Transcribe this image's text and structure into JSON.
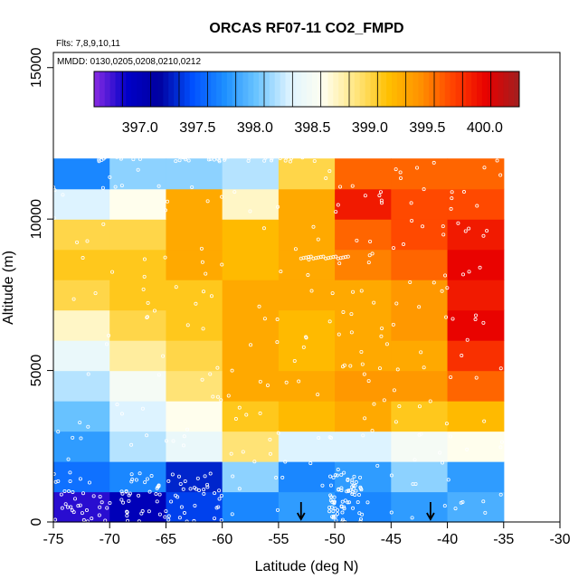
{
  "chart_data": {
    "type": "heatmap",
    "title": "ORCAS RF07-11 CO2_FMPD",
    "annotations": [
      "Flts: 7,8,9,10,11",
      "MMDD: 0130,0205,0208,0210,0212"
    ],
    "xlabel": "Latitude (deg N)",
    "ylabel": "Altitude (m)",
    "xlim": [
      -75,
      -30
    ],
    "ylim": [
      0,
      15500
    ],
    "x_ticks": [
      -75,
      -70,
      -65,
      -60,
      -55,
      -50,
      -45,
      -40,
      -35,
      -30
    ],
    "y_ticks": [
      0,
      5000,
      10000,
      15000
    ],
    "x_bin_edges": [
      -75,
      -70,
      -65,
      -60,
      -55,
      -50,
      -45,
      -40,
      -35
    ],
    "y_bin_edges": [
      0,
      1000,
      2000,
      3000,
      4000,
      5000,
      6000,
      7000,
      8000,
      9000,
      10000,
      11000,
      12000
    ],
    "values": [
      [
        396.8,
        397.0,
        397.4,
        397.7,
        397.8,
        397.7,
        397.8,
        397.9
      ],
      [
        397.6,
        397.7,
        397.3,
        398.1,
        397.7,
        397.8,
        398.1,
        397.8
      ],
      [
        397.8,
        398.2,
        398.4,
        398.9,
        398.3,
        398.3,
        398.5,
        398.6
      ],
      [
        398.0,
        398.3,
        398.6,
        399.1,
        399.2,
        399.3,
        399.1,
        399.2
      ],
      [
        398.2,
        398.5,
        398.9,
        399.3,
        399.3,
        399.4,
        399.4,
        399.6
      ],
      [
        398.4,
        398.8,
        399.0,
        399.3,
        399.2,
        399.3,
        399.3,
        399.8
      ],
      [
        398.7,
        399.0,
        399.1,
        399.3,
        399.2,
        399.3,
        399.4,
        400.0
      ],
      [
        399.0,
        399.1,
        399.1,
        399.3,
        399.3,
        399.3,
        399.4,
        399.9
      ],
      [
        399.1,
        399.1,
        399.3,
        399.2,
        399.3,
        399.5,
        399.6,
        400.0
      ],
      [
        399.0,
        399.0,
        399.3,
        399.2,
        399.3,
        399.6,
        399.7,
        399.9
      ],
      [
        398.3,
        398.6,
        399.3,
        398.7,
        399.3,
        399.9,
        399.7,
        399.7
      ],
      [
        397.7,
        398.1,
        398.1,
        398.2,
        399.0,
        399.6,
        399.6,
        399.6
      ]
    ],
    "colorbar": {
      "min": 396.6,
      "max": 400.3,
      "ticks": [
        397.0,
        397.5,
        398.0,
        398.5,
        399.0,
        399.5,
        400.0
      ],
      "tick_labels": [
        "397.0",
        "397.5",
        "398.0",
        "398.5",
        "399.0",
        "399.5",
        "400.0"
      ],
      "colors": [
        "#8a2be2",
        "#0000c8",
        "#0000a0",
        "#0050ff",
        "#1e90ff",
        "#6ec6ff",
        "#e0f4ff",
        "#fffff0",
        "#ffe680",
        "#ffc000",
        "#ff9000",
        "#ff4000",
        "#e80000",
        "#a02020"
      ]
    },
    "markers": {
      "type": "arrow-down",
      "x": [
        -53,
        -41.5
      ]
    },
    "grid": false,
    "legend": "colorbar top inside plot"
  }
}
